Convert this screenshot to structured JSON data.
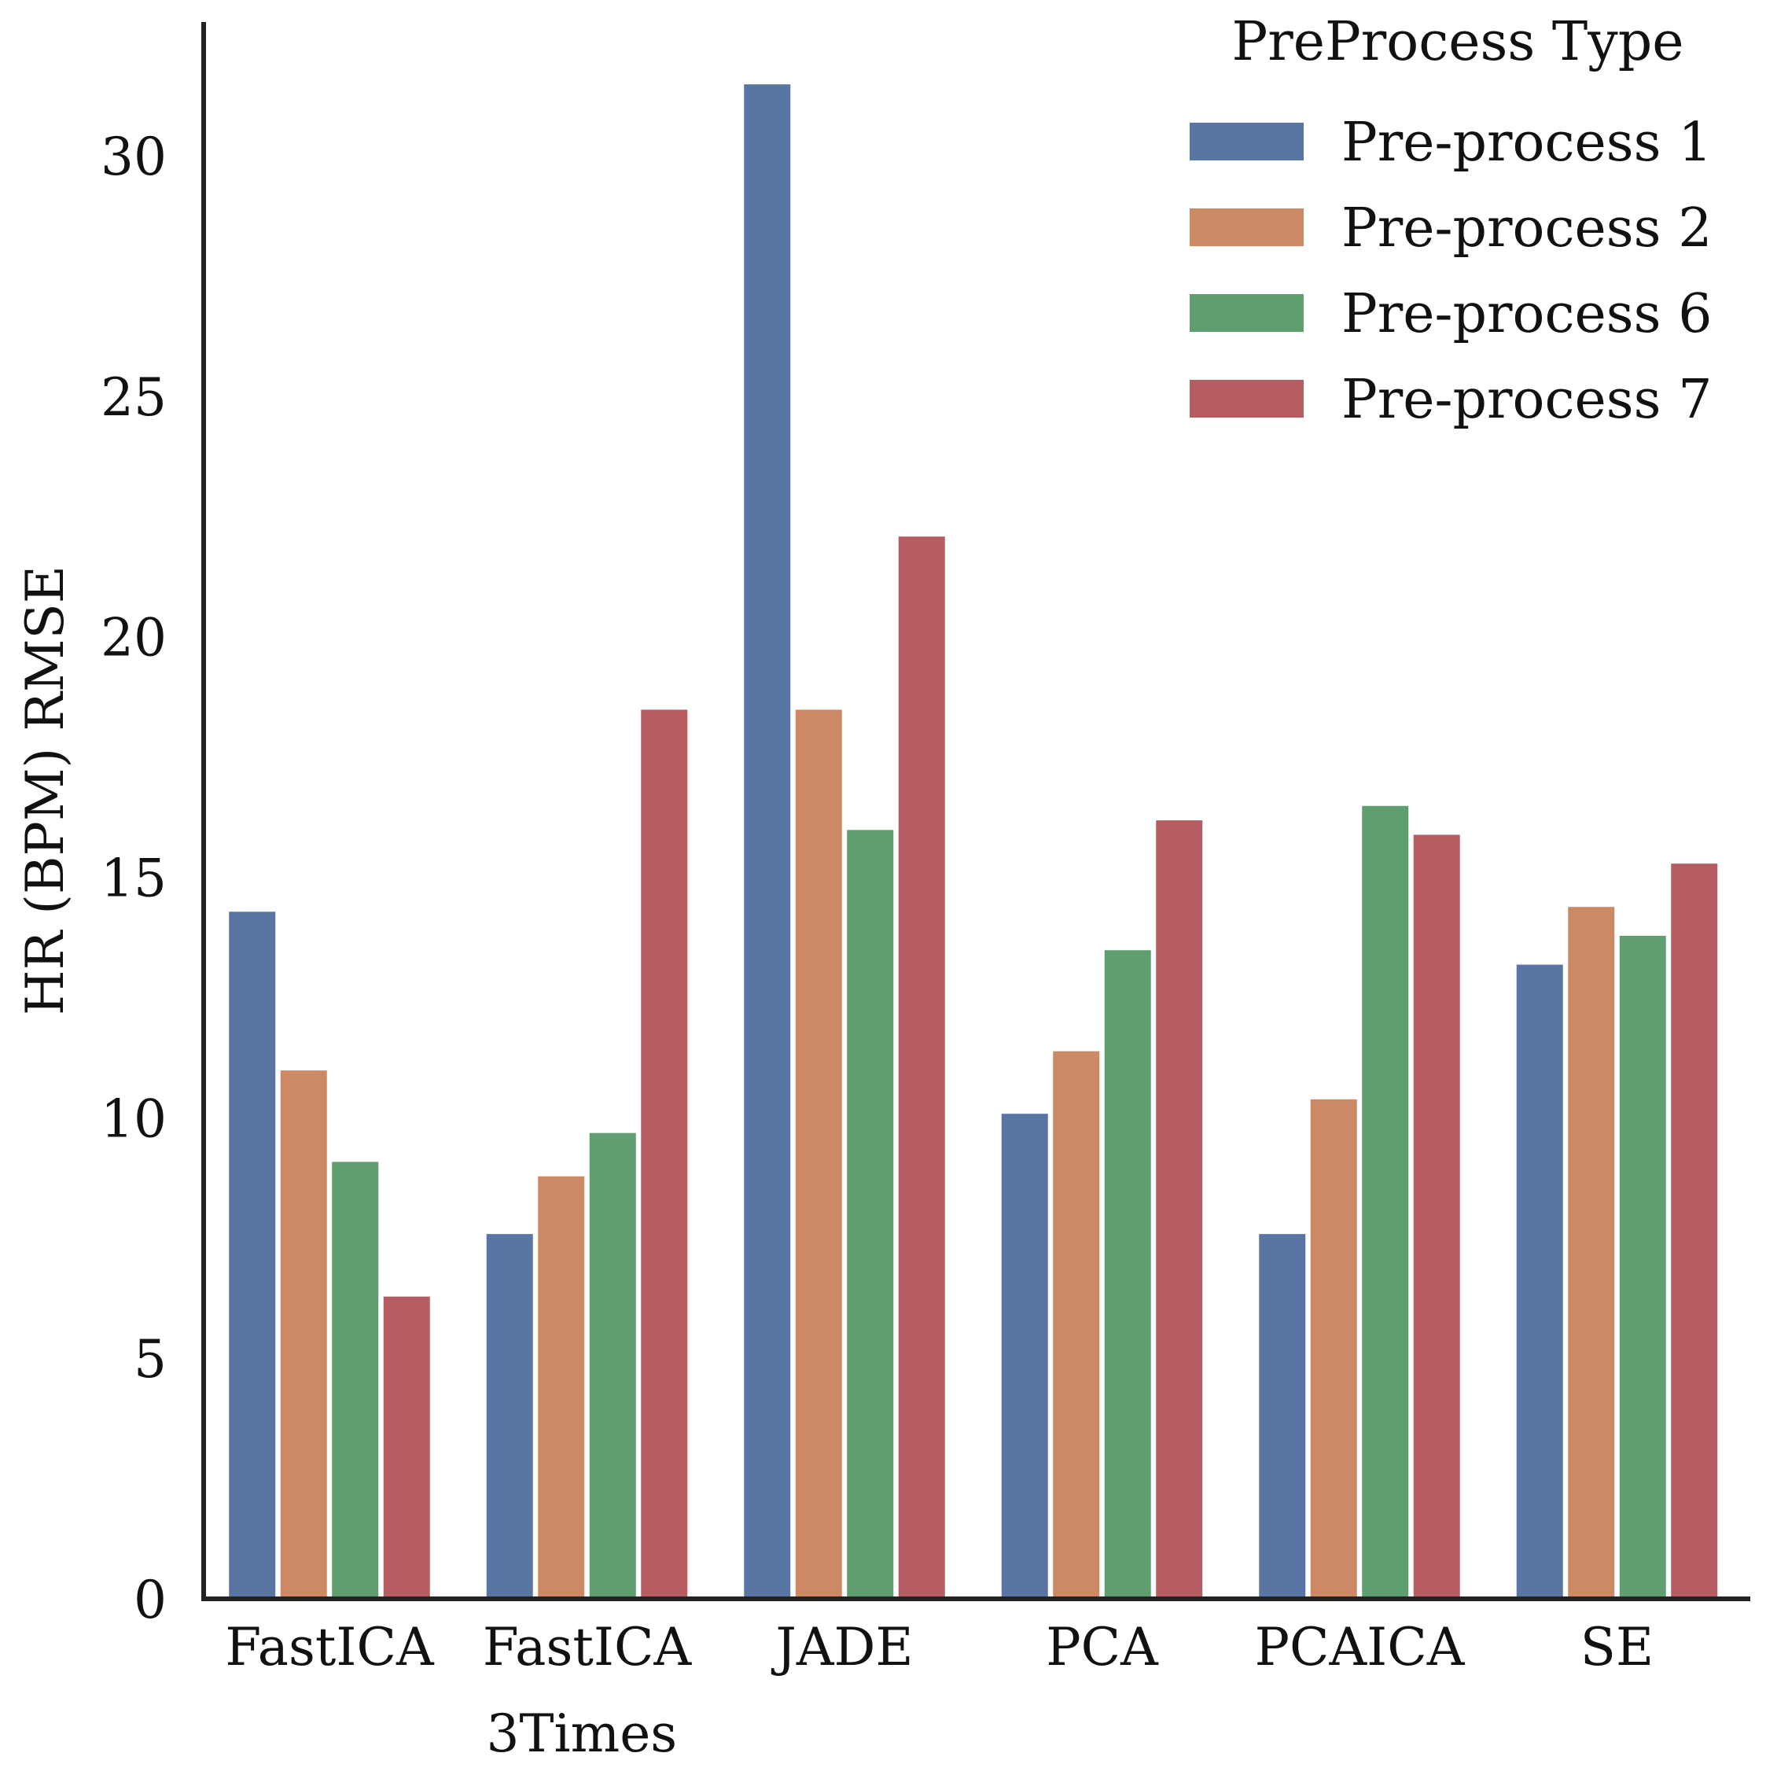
{
  "chart_data": {
    "type": "bar",
    "title": "",
    "xlabel": "",
    "ylabel": "HR (BPM) RMSE",
    "ylim": [
      0,
      32.5
    ],
    "yticks": [
      0,
      5,
      10,
      15,
      20,
      25,
      30
    ],
    "grid": false,
    "categories": [
      [
        "FastICA"
      ],
      [
        "FastICA",
        "3Times"
      ],
      [
        "JADE"
      ],
      [
        "PCA"
      ],
      [
        "PCAICA"
      ],
      [
        "SE"
      ]
    ],
    "legend": {
      "title": "PreProcess Type",
      "placement": "top-right"
    },
    "series": [
      {
        "name": "Pre-process 1",
        "color": "#5975a4",
        "values": [
          14.3,
          7.6,
          31.5,
          10.1,
          7.6,
          13.2
        ]
      },
      {
        "name": "Pre-process 2",
        "color": "#cc8963",
        "values": [
          11.0,
          8.8,
          18.5,
          11.4,
          10.4,
          14.4
        ]
      },
      {
        "name": "Pre-process 6",
        "color": "#5f9e6e",
        "values": [
          9.1,
          9.7,
          16.0,
          13.5,
          16.5,
          13.8
        ]
      },
      {
        "name": "Pre-process 7",
        "color": "#b55d60",
        "values": [
          6.3,
          18.5,
          22.1,
          16.2,
          15.9,
          15.3
        ]
      }
    ]
  }
}
